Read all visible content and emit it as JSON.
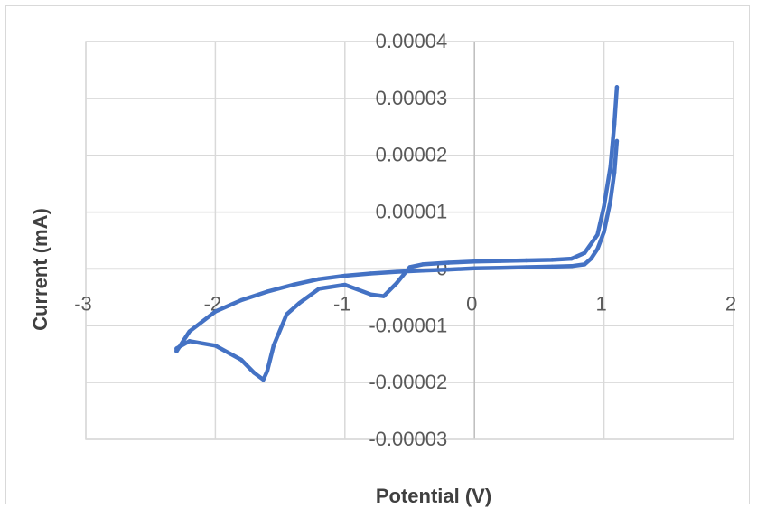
{
  "chart_data": {
    "type": "scatter",
    "title": "",
    "xlabel": "Potential (V)",
    "ylabel": "Current (mA)",
    "xlim": [
      -3,
      2
    ],
    "ylim": [
      -3e-05,
      4e-05
    ],
    "x_ticks": [
      -3,
      -2,
      -1,
      0,
      1,
      2
    ],
    "x_tick_labels": [
      "-3",
      "-2",
      "-1",
      "0",
      "1",
      "2"
    ],
    "y_ticks": [
      4e-05,
      3e-05,
      2e-05,
      1e-05,
      0,
      -1e-05,
      -2e-05,
      -3e-05
    ],
    "y_tick_labels": [
      "0.00004",
      "0.00003",
      "0.00002",
      "0.00001",
      "0",
      "-0.00001",
      "-0.00002",
      "-0.00003"
    ],
    "grid": true,
    "legend": "none",
    "series_color": "#4472c4",
    "series": [
      {
        "name": "",
        "x": [
          1.1,
          1.08,
          1.05,
          1.0,
          0.95,
          0.9,
          0.85,
          0.75,
          0.6,
          0.4,
          0.2,
          0.0,
          -0.2,
          -0.4,
          -0.6,
          -0.8,
          -1.0,
          -1.2,
          -1.4,
          -1.6,
          -1.8,
          -2.0,
          -2.2,
          -2.3,
          -2.3,
          -2.2,
          -2.0,
          -1.8,
          -1.7,
          -1.63,
          -1.6,
          -1.55,
          -1.45,
          -1.35,
          -1.2,
          -1.0,
          -0.8,
          -0.7,
          -0.6,
          -0.5,
          -0.4,
          -0.2,
          0.0,
          0.2,
          0.4,
          0.6,
          0.75,
          0.85,
          0.95,
          1.0,
          1.05,
          1.08,
          1.1
        ],
        "y": [
          2.25e-05,
          1.7e-05,
          1.2e-05,
          6.5e-06,
          3.5e-06,
          1.8e-06,
          8e-07,
          5e-07,
          4e-07,
          3e-07,
          2e-07,
          1e-07,
          -1e-07,
          -3e-07,
          -5e-07,
          -8e-07,
          -1.2e-06,
          -1.8e-06,
          -2.8e-06,
          -4e-06,
          -5.5e-06,
          -7.5e-06,
          -1.1e-05,
          -1.45e-05,
          -1.4e-05,
          -1.27e-05,
          -1.35e-05,
          -1.6e-05,
          -1.83e-05,
          -1.95e-05,
          -1.8e-05,
          -1.35e-05,
          -8e-06,
          -6e-06,
          -3.5e-06,
          -2.8e-06,
          -4.5e-06,
          -4.8e-06,
          -2.5e-06,
          3e-07,
          8e-07,
          1.1e-06,
          1.3e-06,
          1.4e-06,
          1.5e-06,
          1.6e-06,
          1.8e-06,
          2.8e-06,
          6e-06,
          1.1e-05,
          1.8e-05,
          2.55e-05,
          3.2e-05
        ]
      }
    ]
  }
}
